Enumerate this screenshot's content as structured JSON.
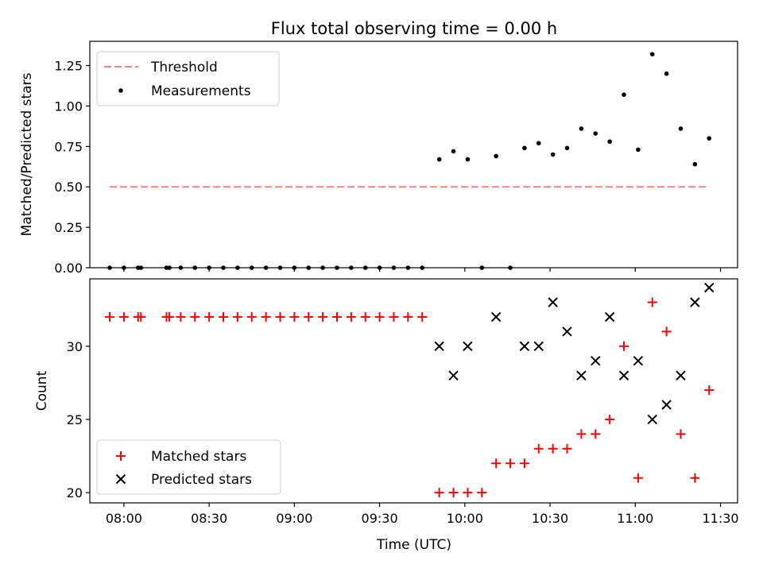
{
  "title": "Flux total observing time = 0.00 h",
  "xlabel": "Time (UTC)",
  "xtick_labels": [
    {
      "t": "08:00",
      "label": "08:00"
    },
    {
      "t": "08:30",
      "label": "08:30"
    },
    {
      "t": "09:00",
      "label": "09:00"
    },
    {
      "t": "09:30",
      "label": "09:30"
    },
    {
      "t": "10:00",
      "label": "10:00"
    },
    {
      "t": "10:30",
      "label": "10:30"
    },
    {
      "t": "11:00",
      "label": "11:00"
    },
    {
      "t": "11:30",
      "label": "11:30"
    }
  ],
  "colors": {
    "threshold": "#ff7f7f",
    "measurements": "#000000",
    "matched": "#ff0000",
    "predicted": "#000000"
  },
  "chart_data": [
    {
      "type": "scatter",
      "ylabel": "Matched/Predicted stars",
      "xlim": [
        "07:48",
        "11:36"
      ],
      "ylim": [
        0,
        1.4
      ],
      "yticks": [
        "0.00",
        "0.25",
        "0.50",
        "0.75",
        "1.00",
        "1.25"
      ],
      "legend": {
        "placement": "upper-left",
        "entries": [
          {
            "label": "Threshold",
            "marker": "dashed-line"
          },
          {
            "label": "Measurements",
            "marker": "dot"
          }
        ]
      },
      "threshold": {
        "y": 0.5,
        "x_start": "07:55",
        "x_end": "11:26"
      },
      "series": [
        {
          "name": "Measurements",
          "x": [
            "07:55",
            "08:00",
            "08:05",
            "08:06",
            "08:15",
            "08:16",
            "08:20",
            "08:25",
            "08:30",
            "08:35",
            "08:40",
            "08:45",
            "08:50",
            "08:55",
            "09:00",
            "09:05",
            "09:10",
            "09:15",
            "09:20",
            "09:25",
            "09:30",
            "09:35",
            "09:40",
            "09:45",
            "09:51",
            "09:56",
            "10:01",
            "10:06",
            "10:11",
            "10:16",
            "10:21",
            "10:26",
            "10:31",
            "10:36",
            "10:41",
            "10:46",
            "10:51",
            "10:56",
            "11:01",
            "11:06",
            "11:11",
            "11:16",
            "11:21",
            "11:26"
          ],
          "y": [
            0,
            0,
            0,
            0,
            0,
            0,
            0,
            0,
            0,
            0,
            0,
            0,
            0,
            0,
            0,
            0,
            0,
            0,
            0,
            0,
            0,
            0,
            0,
            0,
            0.67,
            0.72,
            0.67,
            0,
            0.69,
            0,
            0.74,
            0.77,
            0.7,
            0.74,
            0.86,
            0.83,
            0.78,
            1.07,
            0.73,
            1.32,
            1.2,
            0.86,
            0.64,
            0.8
          ]
        }
      ]
    },
    {
      "type": "scatter",
      "ylabel": "Count",
      "xlabel": "Time (UTC)",
      "xlim": [
        "07:48",
        "11:36"
      ],
      "ylim": [
        19.3,
        34.6
      ],
      "yticks": [
        "20",
        "25",
        "30"
      ],
      "legend": {
        "placement": "lower-left",
        "entries": [
          {
            "label": "Matched stars",
            "marker": "plus"
          },
          {
            "label": "Predicted stars",
            "marker": "x"
          }
        ]
      },
      "series": [
        {
          "name": "Matched stars",
          "x": [
            "07:55",
            "08:00",
            "08:05",
            "08:06",
            "08:15",
            "08:16",
            "08:20",
            "08:25",
            "08:30",
            "08:35",
            "08:40",
            "08:45",
            "08:50",
            "08:55",
            "09:00",
            "09:05",
            "09:10",
            "09:15",
            "09:20",
            "09:25",
            "09:30",
            "09:35",
            "09:40",
            "09:45",
            "09:51",
            "09:56",
            "10:01",
            "10:06",
            "10:11",
            "10:16",
            "10:21",
            "10:26",
            "10:31",
            "10:36",
            "10:41",
            "10:46",
            "10:51",
            "10:56",
            "11:01",
            "11:06",
            "11:11",
            "11:16",
            "11:21",
            "11:26"
          ],
          "y": [
            32,
            32,
            32,
            32,
            32,
            32,
            32,
            32,
            32,
            32,
            32,
            32,
            32,
            32,
            32,
            32,
            32,
            32,
            32,
            32,
            32,
            32,
            32,
            32,
            20,
            20,
            20,
            20,
            22,
            22,
            22,
            23,
            23,
            23,
            24,
            24,
            25,
            30,
            21,
            33,
            31,
            24,
            21,
            27
          ]
        },
        {
          "name": "Predicted stars",
          "x": [
            "09:51",
            "09:56",
            "10:01",
            "10:11",
            "10:21",
            "10:26",
            "10:31",
            "10:36",
            "10:41",
            "10:46",
            "10:51",
            "10:56",
            "11:01",
            "11:06",
            "11:11",
            "11:16",
            "11:21",
            "11:26"
          ],
          "y": [
            30,
            28,
            30,
            32,
            30,
            30,
            33,
            31,
            28,
            29,
            32,
            28,
            29,
            25,
            26,
            28,
            33,
            34
          ]
        }
      ]
    }
  ]
}
